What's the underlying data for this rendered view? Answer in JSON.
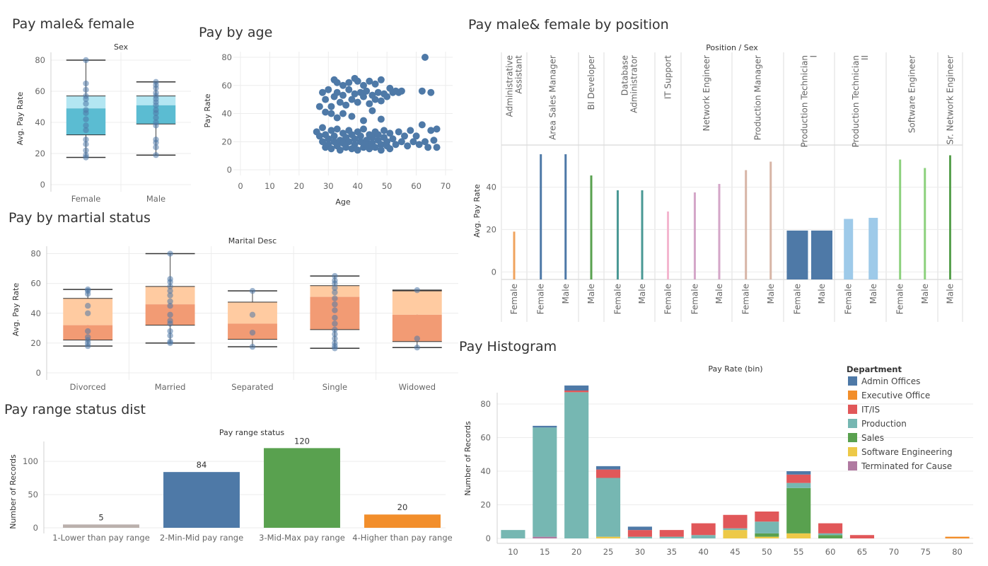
{
  "titles": {
    "pay_sex": "Pay male& female",
    "pay_age": "Pay by age",
    "pay_marital": "Pay by martial status",
    "pay_range": "Pay range status dist",
    "pay_position": "Pay male& female by position",
    "pay_hist": "Pay Histogram"
  },
  "chart_data": [
    {
      "id": "pay_sex",
      "type": "box",
      "title": "Pay male& female",
      "header": "Sex",
      "ylabel": "Avg. Pay Rate",
      "ylim": [
        0,
        85
      ],
      "yticks": [
        0,
        20,
        40,
        60,
        80
      ],
      "categories": [
        "Female",
        "Male"
      ],
      "colors": {
        "upper": "#b3e6f2",
        "lower": "#5bbcd2",
        "point": "#4e79a7"
      },
      "boxes": [
        {
          "min": 17.5,
          "q1": 32,
          "median": 49,
          "q3": 57,
          "max": 80,
          "points": [
            17.5,
            19,
            22,
            26,
            29,
            35,
            38,
            42,
            46,
            48,
            52,
            55,
            57,
            61,
            65,
            80
          ]
        },
        {
          "min": 19,
          "q1": 39,
          "median": 51,
          "q3": 57,
          "max": 66,
          "points": [
            19,
            24,
            27,
            29,
            38,
            40,
            43,
            46,
            48,
            51,
            53,
            55,
            57,
            59,
            62,
            64,
            66
          ]
        }
      ]
    },
    {
      "id": "pay_age",
      "type": "scatter",
      "title": "Pay by age",
      "xlabel": "Age",
      "ylabel": "Pay Rate",
      "xlim": [
        0,
        70
      ],
      "ylim": [
        0,
        80
      ],
      "xticks": [
        0,
        10,
        20,
        30,
        40,
        50,
        60,
        70
      ],
      "yticks": [
        0,
        20,
        40,
        60,
        80
      ],
      "color": "#4e79a7",
      "points": [
        [
          26,
          27
        ],
        [
          27,
          24
        ],
        [
          28,
          20
        ],
        [
          28,
          30
        ],
        [
          29,
          16
        ],
        [
          29,
          25
        ],
        [
          30,
          22
        ],
        [
          30,
          18
        ],
        [
          31,
          28
        ],
        [
          31,
          15
        ],
        [
          32,
          20
        ],
        [
          32,
          24
        ],
        [
          33,
          17
        ],
        [
          33,
          29
        ],
        [
          34,
          21
        ],
        [
          34,
          14
        ],
        [
          35,
          26
        ],
        [
          35,
          19
        ],
        [
          36,
          23
        ],
        [
          36,
          16
        ],
        [
          37,
          28
        ],
        [
          37,
          20
        ],
        [
          38,
          15
        ],
        [
          38,
          25
        ],
        [
          39,
          18
        ],
        [
          39,
          22
        ],
        [
          40,
          27
        ],
        [
          40,
          14
        ],
        [
          41,
          20
        ],
        [
          41,
          24
        ],
        [
          42,
          16
        ],
        [
          42,
          29
        ],
        [
          43,
          21
        ],
        [
          43,
          18
        ],
        [
          44,
          25
        ],
        [
          44,
          15
        ],
        [
          45,
          23
        ],
        [
          45,
          19
        ],
        [
          46,
          27
        ],
        [
          46,
          16
        ],
        [
          47,
          21
        ],
        [
          47,
          25
        ],
        [
          48,
          18
        ],
        [
          48,
          14
        ],
        [
          49,
          23
        ],
        [
          49,
          28
        ],
        [
          50,
          17
        ],
        [
          50,
          20
        ],
        [
          51,
          26
        ],
        [
          51,
          15
        ],
        [
          52,
          22
        ],
        [
          53,
          18
        ],
        [
          54,
          27
        ],
        [
          55,
          20
        ],
        [
          56,
          24
        ],
        [
          57,
          17
        ],
        [
          58,
          28
        ],
        [
          59,
          20
        ],
        [
          60,
          24
        ],
        [
          61,
          18
        ],
        [
          62,
          32
        ],
        [
          63,
          20
        ],
        [
          64,
          16
        ],
        [
          65,
          28
        ],
        [
          66,
          21
        ],
        [
          67,
          16
        ],
        [
          67,
          29
        ],
        [
          27,
          45
        ],
        [
          28,
          55
        ],
        [
          29,
          50
        ],
        [
          30,
          57
        ],
        [
          31,
          45
        ],
        [
          32,
          52
        ],
        [
          33,
          55
        ],
        [
          34,
          48
        ],
        [
          35,
          53
        ],
        [
          36,
          46
        ],
        [
          37,
          57
        ],
        [
          38,
          50
        ],
        [
          39,
          54
        ],
        [
          40,
          48
        ],
        [
          41,
          55
        ],
        [
          42,
          52
        ],
        [
          43,
          56
        ],
        [
          44,
          47
        ],
        [
          45,
          53
        ],
        [
          46,
          50
        ],
        [
          47,
          55
        ],
        [
          48,
          49
        ],
        [
          49,
          54
        ],
        [
          50,
          52
        ],
        [
          51,
          58
        ],
        [
          52,
          55
        ],
        [
          53,
          56
        ],
        [
          54,
          55
        ],
        [
          55,
          56
        ],
        [
          32,
          64
        ],
        [
          33,
          62
        ],
        [
          35,
          60
        ],
        [
          37,
          62
        ],
        [
          39,
          65
        ],
        [
          40,
          63
        ],
        [
          42,
          60
        ],
        [
          44,
          63
        ],
        [
          46,
          61
        ],
        [
          48,
          64
        ],
        [
          35,
          40
        ],
        [
          38,
          38
        ],
        [
          42,
          35
        ],
        [
          45,
          42
        ],
        [
          48,
          36
        ],
        [
          31,
          40
        ],
        [
          33,
          37
        ],
        [
          29,
          41
        ],
        [
          62,
          56
        ],
        [
          63,
          80
        ],
        [
          65,
          55
        ]
      ]
    },
    {
      "id": "pay_marital",
      "type": "box",
      "title": "Pay by martial status",
      "header": "Marital Desc",
      "ylabel": "Avg. Pay Rate",
      "ylim": [
        0,
        85
      ],
      "yticks": [
        0,
        20,
        40,
        60,
        80
      ],
      "categories": [
        "Divorced",
        "Married",
        "Separated",
        "Single",
        "Widowed"
      ],
      "colors": {
        "upper": "#ffcba1",
        "lower": "#f29b74",
        "point": "#4e79a7"
      },
      "boxes": [
        {
          "min": 18,
          "q1": 22,
          "median": 32,
          "q3": 50,
          "max": 56,
          "points": [
            18,
            20,
            22,
            24,
            28,
            40,
            45,
            53,
            55,
            56
          ]
        },
        {
          "min": 20,
          "q1": 32,
          "median": 46,
          "q3": 58,
          "max": 80,
          "points": [
            20,
            21,
            25,
            28,
            33,
            35,
            39,
            45,
            48,
            52,
            55,
            58,
            61,
            63,
            80
          ]
        },
        {
          "min": 17.5,
          "q1": 22.5,
          "median": 33,
          "q3": 47.5,
          "max": 55,
          "points": [
            17.5,
            27,
            39,
            55
          ]
        },
        {
          "min": 16.5,
          "q1": 29,
          "median": 51,
          "q3": 58.5,
          "max": 65,
          "points": [
            16.5,
            18,
            20,
            23,
            26,
            29,
            33,
            37,
            42,
            46,
            50,
            54,
            57,
            60,
            62,
            65
          ]
        },
        {
          "min": 17,
          "q1": 21,
          "median": 39,
          "q3": 55,
          "max": 55.5,
          "points": [
            17,
            23,
            55.5
          ]
        }
      ]
    },
    {
      "id": "pay_range",
      "type": "bar",
      "title": "Pay range status dist",
      "header": "Pay range status",
      "ylabel": "Number of Records",
      "ylim": [
        0,
        130
      ],
      "yticks": [
        0,
        50,
        100
      ],
      "categories": [
        "1-Lower than pay range",
        "2-Min-Mid pay range",
        "3-Mid-Max pay range",
        "4-Higher than pay range"
      ],
      "values": [
        5,
        84,
        120,
        20
      ],
      "colors": [
        "#bab0ac",
        "#4e79a7",
        "#59a14f",
        "#f28e2b"
      ]
    },
    {
      "id": "pay_position",
      "type": "bar",
      "title": "Pay male& female by position",
      "header": "Position / Sex",
      "ylabel": "Avg. Pay Rate",
      "ylim": [
        -5,
        58
      ],
      "yticks": [
        0,
        20,
        40
      ],
      "positions": [
        {
          "name": "Administrative Assistant",
          "lines": [
            "Administrative",
            "Assistant"
          ],
          "color": "#f0a35e",
          "bars": [
            {
              "sex": "Female",
              "value": 19
            }
          ]
        },
        {
          "name": "Area Sales Manager",
          "lines": [
            "Area Sales Manager"
          ],
          "color": "#4e79a7",
          "bars": [
            {
              "sex": "Female",
              "value": 55.5
            },
            {
              "sex": "Male",
              "value": 55.5
            }
          ]
        },
        {
          "name": "BI Developer",
          "lines": [
            "BI Developer"
          ],
          "color": "#59a14f",
          "bars": [
            {
              "sex": "Male",
              "value": 45.5
            }
          ]
        },
        {
          "name": "Database Administrator",
          "lines": [
            "Database",
            "Administrator"
          ],
          "color": "#499894",
          "bars": [
            {
              "sex": "Female",
              "value": 38.5
            },
            {
              "sex": "Male",
              "value": 38.5
            }
          ]
        },
        {
          "name": "IT Support",
          "lines": [
            "IT Support"
          ],
          "color": "#f4b6cf",
          "bars": [
            {
              "sex": "Female",
              "value": 28.5
            }
          ]
        },
        {
          "name": "Network Engineer",
          "lines": [
            "Network Engineer"
          ],
          "color": "#d4a6c8",
          "bars": [
            {
              "sex": "Female",
              "value": 37.5
            },
            {
              "sex": "Male",
              "value": 41.5
            }
          ]
        },
        {
          "name": "Production Manager",
          "lines": [
            "Production Manager"
          ],
          "color": "#d7b5a6",
          "bars": [
            {
              "sex": "Female",
              "value": 48
            },
            {
              "sex": "Male",
              "value": 52
            }
          ]
        },
        {
          "name": "Production Technician I",
          "lines": [
            "Production Technician",
            "I"
          ],
          "color": "#4e79a7",
          "bars": [
            {
              "sex": "Female",
              "value": 19.5
            },
            {
              "sex": "Male",
              "value": 19.5
            }
          ]
        },
        {
          "name": "Production Technician II",
          "lines": [
            "Production Technician",
            "II"
          ],
          "color": "#9ecae9",
          "bars": [
            {
              "sex": "Female",
              "value": 25
            },
            {
              "sex": "Male",
              "value": 25.5
            }
          ]
        },
        {
          "name": "Software Engineer",
          "lines": [
            "Software Engineer"
          ],
          "color": "#8cd17d",
          "bars": [
            {
              "sex": "Female",
              "value": 53
            },
            {
              "sex": "Male",
              "value": 49
            }
          ]
        },
        {
          "name": "Sr. Network Engineer",
          "lines": [
            "Sr. Network Engineer"
          ],
          "color": "#59a14f",
          "bars": [
            {
              "sex": "Male",
              "value": 55
            }
          ]
        }
      ]
    },
    {
      "id": "pay_hist",
      "type": "stacked-bar",
      "title": "Pay Histogram",
      "header": "Pay Rate (bin)",
      "ylabel": "Number of Records",
      "ylim": [
        0,
        93
      ],
      "yticks": [
        0,
        20,
        40,
        60,
        80
      ],
      "categories": [
        "10",
        "15",
        "20",
        "25",
        "30",
        "35",
        "40",
        "45",
        "50",
        "55",
        "60",
        "65",
        "70",
        "75",
        "80"
      ],
      "legend_title": "Department",
      "series": [
        {
          "name": "Terminated for Cause",
          "color": "#b07aa1",
          "values": [
            0,
            1,
            0,
            0,
            0,
            0,
            0,
            0,
            0,
            0,
            0,
            0,
            0,
            0,
            0
          ]
        },
        {
          "name": "Software Engineering",
          "color": "#edc948",
          "values": [
            0,
            0,
            0,
            1,
            0,
            0,
            0,
            5,
            1,
            3,
            0,
            0,
            0,
            0,
            0
          ]
        },
        {
          "name": "Sales",
          "color": "#59a14f",
          "values": [
            0,
            0,
            0,
            0,
            0,
            0,
            0,
            0,
            2,
            27,
            2,
            0,
            0,
            0,
            0
          ]
        },
        {
          "name": "Production",
          "color": "#76b7b2",
          "values": [
            5,
            65,
            87,
            35,
            1,
            1,
            2,
            1,
            7,
            3,
            1,
            0,
            0,
            0,
            0
          ]
        },
        {
          "name": "IT/IS",
          "color": "#e15759",
          "values": [
            0,
            0,
            1,
            5,
            4,
            4,
            7,
            8,
            6,
            5,
            6,
            2,
            0,
            0,
            0
          ]
        },
        {
          "name": "Executive Office",
          "color": "#f28e2b",
          "values": [
            0,
            0,
            0,
            0,
            0,
            0,
            0,
            0,
            0,
            0,
            0,
            0,
            0,
            0,
            1
          ]
        },
        {
          "name": "Admin Offices",
          "color": "#4e79a7",
          "values": [
            0,
            1,
            3,
            2,
            2,
            0,
            0,
            0,
            0,
            2,
            0,
            0,
            0,
            0,
            0
          ]
        }
      ],
      "legend_order": [
        "Admin Offices",
        "Executive Office",
        "IT/IS",
        "Production",
        "Sales",
        "Software Engineering",
        "Terminated for Cause"
      ]
    }
  ]
}
